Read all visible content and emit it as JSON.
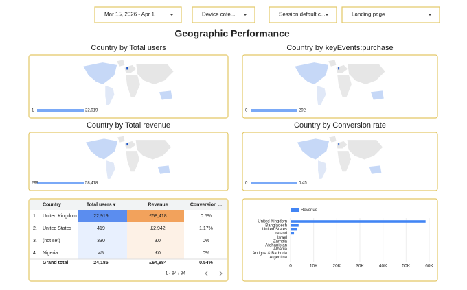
{
  "filters": [
    "Mar 15, 2026 - Apr 1",
    "Device cate...",
    "Session default c...",
    "Landing page"
  ],
  "title": "Geographic Performance",
  "maps": [
    {
      "title": "Country by Total users",
      "min": "1",
      "max": "22,919"
    },
    {
      "title": "Country by keyEvents:purchase",
      "min": "0",
      "max": "292"
    },
    {
      "title": "Country by Total revenue",
      "min": "299",
      "max": "58,418"
    },
    {
      "title": "Country by Conversion rate",
      "min": "0",
      "max": "0.45"
    }
  ],
  "table": {
    "header": [
      "Country",
      "Total users ▾",
      "Revenue",
      "Conversion ..."
    ],
    "rows": [
      [
        "1.",
        "United Kingdom",
        "22,919",
        "£58,418",
        "0.5%"
      ],
      [
        "2.",
        "United States",
        "419",
        "£2,942",
        "1.17%"
      ],
      [
        "3.",
        "(not set)",
        "330",
        "£0",
        "0%"
      ],
      [
        "4.",
        "Nigeria",
        "45",
        "£0",
        "0%"
      ]
    ],
    "total": [
      "Grand total",
      "24,185",
      "£64,884",
      "0.54%"
    ],
    "pagination": "1 - 84 / 84"
  },
  "bar_chart": {
    "type": "bar",
    "legend": "Revenue",
    "color": "#4285f4",
    "categories": [
      "United Kingdom",
      "Bangladesh",
      "United States",
      "Ireland",
      "Israel",
      "Zambia",
      "Afghanistan",
      "Albania",
      "Antigua & Barbuda",
      "Argentina"
    ],
    "values": [
      58418,
      3500,
      2942,
      1500,
      0,
      0,
      0,
      0,
      0,
      0
    ],
    "xlim": [
      0,
      60000
    ],
    "xticks": [
      0,
      {
        "value": 10000,
        "label": "10K"
      },
      {
        "value": 20000,
        "label": "20K"
      },
      {
        "value": 30000,
        "label": "30K"
      },
      {
        "value": 40000,
        "label": "40K"
      },
      {
        "value": 50000,
        "label": "50K"
      },
      {
        "value": 60000,
        "label": "60K"
      }
    ]
  }
}
